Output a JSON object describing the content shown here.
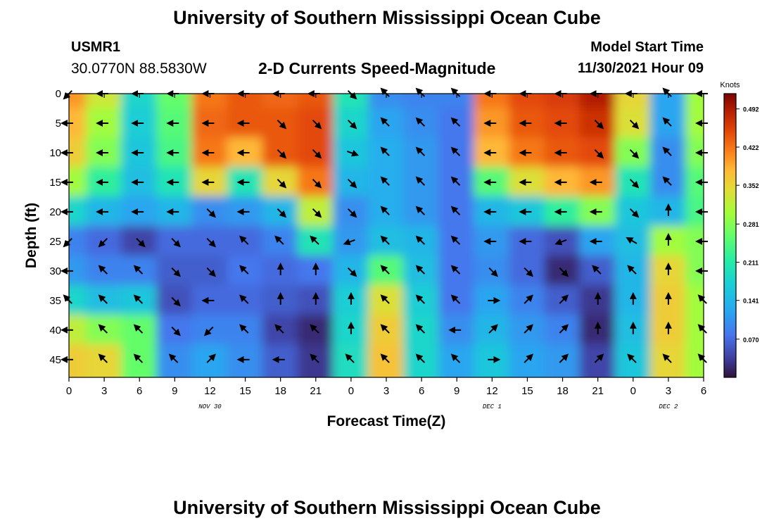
{
  "header": {
    "title": "University of Southern Mississippi Ocean Cube",
    "station_id": "USMR1",
    "station_coords": "30.0770N  88.5830W",
    "plot_title": "2-D Currents Speed-Magnitude",
    "model_start_label": "Model Start Time",
    "model_start_value": "11/30/2021 Hour 09"
  },
  "footer": {
    "title": "University of Southern Mississippi Ocean Cube"
  },
  "chart_data": {
    "type": "heatmap",
    "xlabel": "Forecast Time(Z)",
    "ylabel": "Depth (ft)",
    "x_hours": [
      0,
      3,
      6,
      9,
      12,
      15,
      18,
      21,
      24,
      27,
      30,
      33,
      36,
      39,
      42,
      45,
      48,
      51,
      54
    ],
    "x_tick_labels": [
      "0",
      "3",
      "6",
      "9",
      "12",
      "15",
      "18",
      "21",
      "0",
      "3",
      "6",
      "9",
      "12",
      "15",
      "18",
      "21",
      "0",
      "3",
      "6"
    ],
    "xlim": [
      0,
      54
    ],
    "day_labels": [
      {
        "x": 12,
        "text": "NOV 30"
      },
      {
        "x": 36,
        "text": "DEC 1"
      },
      {
        "x": 51,
        "text": "DEC 2"
      }
    ],
    "y_ticks": [
      0,
      5,
      10,
      15,
      20,
      25,
      30,
      35,
      40,
      45
    ],
    "y_tick_labels": [
      "0",
      "5",
      "10",
      "15",
      "20",
      "25",
      "30",
      "35",
      "40",
      "45"
    ],
    "ylim": [
      0,
      48
    ],
    "colorbar": {
      "label": "Knots",
      "ticks": [
        0.492,
        0.422,
        0.352,
        0.281,
        0.211,
        0.141,
        0.07
      ],
      "tick_labels": [
        "0.492",
        "0.422",
        "0.352",
        "0.281",
        "0.211",
        "0.141",
        "0.070"
      ],
      "range": [
        0.0,
        0.52
      ]
    },
    "depths": [
      0,
      5,
      10,
      15,
      20,
      25,
      30,
      35,
      40,
      45
    ],
    "speed": [
      [
        0.4,
        0.33,
        0.18,
        0.26,
        0.42,
        0.44,
        0.43,
        0.44,
        0.2,
        0.1,
        0.09,
        0.09,
        0.42,
        0.45,
        0.46,
        0.49,
        0.35,
        0.12,
        0.3
      ],
      [
        0.38,
        0.3,
        0.17,
        0.25,
        0.43,
        0.44,
        0.44,
        0.45,
        0.18,
        0.12,
        0.1,
        0.08,
        0.4,
        0.44,
        0.45,
        0.47,
        0.34,
        0.12,
        0.3
      ],
      [
        0.36,
        0.28,
        0.16,
        0.24,
        0.42,
        0.38,
        0.44,
        0.45,
        0.16,
        0.13,
        0.11,
        0.08,
        0.38,
        0.42,
        0.44,
        0.45,
        0.28,
        0.1,
        0.28
      ],
      [
        0.3,
        0.22,
        0.15,
        0.2,
        0.35,
        0.2,
        0.35,
        0.42,
        0.14,
        0.13,
        0.11,
        0.08,
        0.25,
        0.34,
        0.38,
        0.4,
        0.2,
        0.1,
        0.25
      ],
      [
        0.18,
        0.14,
        0.12,
        0.14,
        0.1,
        0.11,
        0.14,
        0.32,
        0.1,
        0.13,
        0.11,
        0.08,
        0.14,
        0.16,
        0.22,
        0.28,
        0.16,
        0.14,
        0.24
      ],
      [
        0.09,
        0.07,
        0.04,
        0.07,
        0.07,
        0.07,
        0.09,
        0.2,
        0.11,
        0.15,
        0.14,
        0.08,
        0.11,
        0.07,
        0.05,
        0.12,
        0.15,
        0.3,
        0.28
      ],
      [
        0.11,
        0.09,
        0.09,
        0.06,
        0.06,
        0.08,
        0.07,
        0.08,
        0.14,
        0.25,
        0.15,
        0.08,
        0.1,
        0.07,
        0.02,
        0.06,
        0.14,
        0.35,
        0.28
      ],
      [
        0.18,
        0.15,
        0.16,
        0.05,
        0.07,
        0.07,
        0.06,
        0.05,
        0.17,
        0.34,
        0.17,
        0.08,
        0.12,
        0.09,
        0.06,
        0.03,
        0.14,
        0.36,
        0.3
      ],
      [
        0.32,
        0.28,
        0.26,
        0.08,
        0.09,
        0.09,
        0.04,
        0.02,
        0.18,
        0.36,
        0.18,
        0.1,
        0.14,
        0.11,
        0.09,
        0.02,
        0.15,
        0.36,
        0.3
      ],
      [
        0.36,
        0.35,
        0.26,
        0.1,
        0.12,
        0.1,
        0.06,
        0.03,
        0.19,
        0.37,
        0.18,
        0.12,
        0.16,
        0.12,
        0.11,
        0.04,
        0.16,
        0.35,
        0.3
      ]
    ],
    "direction_deg": [
      [
        225,
        180,
        180,
        180,
        180,
        180,
        180,
        180,
        315,
        135,
        135,
        135,
        180,
        180,
        180,
        180,
        180,
        135,
        180
      ],
      [
        180,
        180,
        180,
        180,
        180,
        180,
        315,
        315,
        315,
        135,
        135,
        135,
        180,
        180,
        180,
        315,
        315,
        135,
        180
      ],
      [
        180,
        180,
        180,
        180,
        180,
        180,
        315,
        315,
        340,
        135,
        135,
        135,
        180,
        180,
        180,
        315,
        315,
        135,
        180
      ],
      [
        180,
        180,
        180,
        180,
        180,
        180,
        315,
        315,
        315,
        135,
        135,
        135,
        180,
        180,
        180,
        180,
        315,
        135,
        180
      ],
      [
        180,
        180,
        180,
        180,
        315,
        180,
        315,
        315,
        315,
        135,
        135,
        135,
        180,
        180,
        180,
        180,
        315,
        90,
        180
      ],
      [
        225,
        225,
        315,
        315,
        315,
        135,
        135,
        135,
        200,
        135,
        135,
        135,
        180,
        180,
        200,
        180,
        150,
        90,
        180
      ],
      [
        180,
        135,
        135,
        315,
        315,
        135,
        90,
        90,
        315,
        135,
        135,
        135,
        315,
        315,
        315,
        135,
        135,
        90,
        180
      ],
      [
        135,
        135,
        135,
        315,
        180,
        135,
        90,
        90,
        90,
        135,
        135,
        135,
        0,
        45,
        45,
        90,
        90,
        90,
        135
      ],
      [
        180,
        135,
        135,
        315,
        225,
        135,
        135,
        135,
        90,
        135,
        135,
        180,
        45,
        45,
        45,
        90,
        90,
        90,
        135
      ],
      [
        180,
        135,
        135,
        135,
        45,
        180,
        180,
        135,
        135,
        135,
        135,
        135,
        0,
        45,
        45,
        45,
        135,
        135,
        135
      ]
    ]
  }
}
